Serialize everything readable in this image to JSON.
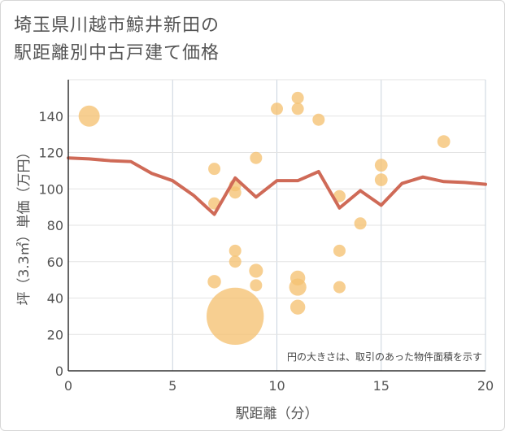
{
  "page": {
    "title_line1": "埼玉県川越市鯨井新田の",
    "title_line2": "駅距離別中古戸建て価格"
  },
  "chart_data": {
    "type": "scatter",
    "title": "埼玉県川越市鯨井新田の駅距離別中古戸建て価格",
    "xlabel": "駅距離（分）",
    "ylabel": "坪（3.3㎡）単価（万円）",
    "xlim": [
      0,
      20
    ],
    "ylim": [
      0,
      160
    ],
    "xticks": [
      0,
      5,
      10,
      15,
      20
    ],
    "yticks": [
      0,
      20,
      40,
      60,
      80,
      100,
      120,
      140
    ],
    "grid": true,
    "note": "円の大きさは、取引のあった物件面積を示す",
    "colors": {
      "bubble": "#f5c172",
      "line": "#cf6a57"
    },
    "points": [
      {
        "x": 1,
        "y": 140,
        "size": 3
      },
      {
        "x": 7,
        "y": 111,
        "size": 1
      },
      {
        "x": 7,
        "y": 92,
        "size": 1
      },
      {
        "x": 7,
        "y": 49,
        "size": 1.2
      },
      {
        "x": 8,
        "y": 102,
        "size": 1
      },
      {
        "x": 8,
        "y": 98,
        "size": 1
      },
      {
        "x": 8,
        "y": 66,
        "size": 1
      },
      {
        "x": 8,
        "y": 60,
        "size": 1
      },
      {
        "x": 8,
        "y": 30,
        "size": 22
      },
      {
        "x": 9,
        "y": 117,
        "size": 1
      },
      {
        "x": 9,
        "y": 55,
        "size": 1.3
      },
      {
        "x": 9,
        "y": 47,
        "size": 1
      },
      {
        "x": 10,
        "y": 144,
        "size": 1
      },
      {
        "x": 11,
        "y": 150,
        "size": 1
      },
      {
        "x": 11,
        "y": 144,
        "size": 1
      },
      {
        "x": 11,
        "y": 51,
        "size": 1.5
      },
      {
        "x": 11,
        "y": 46,
        "size": 2
      },
      {
        "x": 11,
        "y": 35,
        "size": 1.5
      },
      {
        "x": 12,
        "y": 138,
        "size": 1
      },
      {
        "x": 13,
        "y": 96,
        "size": 1
      },
      {
        "x": 13,
        "y": 66,
        "size": 1
      },
      {
        "x": 13,
        "y": 46,
        "size": 1
      },
      {
        "x": 14,
        "y": 81,
        "size": 1
      },
      {
        "x": 15,
        "y": 113,
        "size": 1.1
      },
      {
        "x": 15,
        "y": 105,
        "size": 1.1
      },
      {
        "x": 18,
        "y": 126,
        "size": 1.1
      }
    ],
    "trend_line": {
      "x": [
        0,
        1,
        2,
        3,
        4,
        5,
        6,
        7,
        8,
        9,
        10,
        11,
        12,
        13,
        14,
        15,
        16,
        17,
        18,
        19,
        20
      ],
      "y": [
        117,
        116.5,
        115.5,
        115,
        108.5,
        104.5,
        96.5,
        86,
        106,
        95.5,
        104.5,
        104.5,
        109.5,
        89.5,
        99,
        91,
        103,
        106.5,
        104,
        103.5,
        102.5
      ]
    }
  }
}
